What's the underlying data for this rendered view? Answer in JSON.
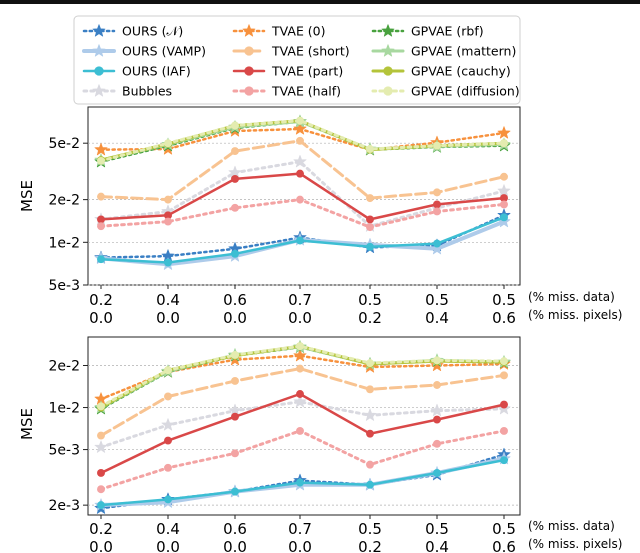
{
  "legend": {
    "entries": [
      {
        "name": "OURS (𝒩)",
        "color": "#3a7fc4",
        "dash": "dot",
        "marker": "star",
        "width": 2.5,
        "alpha": 1
      },
      {
        "name": "OURS (VAMP)",
        "color": "#aecbea",
        "dash": "solid",
        "marker": "star",
        "width": 4,
        "alpha": 1
      },
      {
        "name": "OURS (IAF)",
        "color": "#3cbed3",
        "dash": "solid",
        "marker": "circle",
        "width": 2.5,
        "alpha": 1
      },
      {
        "name": "Bubbles",
        "color": "#d9d9e0",
        "dash": "dot",
        "marker": "star",
        "width": 3,
        "alpha": 1
      },
      {
        "name": "TVAE (0)",
        "color": "#f7913d",
        "dash": "dot",
        "marker": "star",
        "width": 2.5,
        "alpha": 1
      },
      {
        "name": "TVAE (short)",
        "color": "#f8c391",
        "dash": "dash",
        "marker": "circle",
        "width": 3,
        "alpha": 1
      },
      {
        "name": "TVAE (part)",
        "color": "#d94848",
        "dash": "solid",
        "marker": "circle",
        "width": 2.5,
        "alpha": 1
      },
      {
        "name": "TVAE (half)",
        "color": "#f3a3a3",
        "dash": "dot",
        "marker": "circle",
        "width": 3,
        "alpha": 1
      },
      {
        "name": "GPVAE (rbf)",
        "color": "#48a13e",
        "dash": "dot",
        "marker": "star",
        "width": 2.5,
        "alpha": 1
      },
      {
        "name": "GPVAE (mattern)",
        "color": "#a8d8a0",
        "dash": "solid",
        "marker": "star",
        "width": 3,
        "alpha": 1
      },
      {
        "name": "GPVAE (cauchy)",
        "color": "#b4c43a",
        "dash": "solid",
        "marker": "circle",
        "width": 3,
        "alpha": 1
      },
      {
        "name": "GPVAE (diffusion)",
        "color": "#e4ecb0",
        "dash": "dot",
        "marker": "circle",
        "width": 3,
        "alpha": 1
      }
    ]
  },
  "chart_data": [
    {
      "type": "line",
      "ylabel": "MSE",
      "yscale": "log",
      "ylim": [
        0.005,
        0.09
      ],
      "yticks": [
        {
          "v": 0.005,
          "label": "5e-3"
        },
        {
          "v": 0.01,
          "label": "1e-2"
        },
        {
          "v": 0.02,
          "label": "2e-2"
        },
        {
          "v": 0.05,
          "label": "5e-2"
        }
      ],
      "x_row1": [
        "0.2",
        "0.4",
        "0.6",
        "0.7",
        "0.5",
        "0.5",
        "0.5"
      ],
      "x_row2": [
        "0.0",
        "0.0",
        "0.0",
        "0.0",
        "0.2",
        "0.4",
        "0.6"
      ],
      "row1_caption": "(% miss. data)",
      "row2_caption": "(% miss. pixels)",
      "series": [
        {
          "name": "OURS (𝒩)",
          "values": [
            0.0078,
            0.008,
            0.009,
            0.0108,
            0.0092,
            0.0095,
            0.0155
          ]
        },
        {
          "name": "OURS (VAMP)",
          "values": [
            0.0077,
            0.007,
            0.008,
            0.0104,
            0.0096,
            0.009,
            0.014
          ]
        },
        {
          "name": "OURS (IAF)",
          "values": [
            0.0076,
            0.0072,
            0.0083,
            0.0103,
            0.0093,
            0.0098,
            0.015
          ]
        },
        {
          "name": "Bubbles",
          "values": [
            0.0145,
            0.0165,
            0.031,
            0.037,
            0.013,
            0.0175,
            0.023
          ]
        },
        {
          "name": "TVAE (0)",
          "values": [
            0.045,
            0.0455,
            0.061,
            0.063,
            0.045,
            0.0505,
            0.059
          ]
        },
        {
          "name": "TVAE (short)",
          "values": [
            0.021,
            0.02,
            0.044,
            0.052,
            0.0205,
            0.0225,
            0.029
          ]
        },
        {
          "name": "TVAE (part)",
          "values": [
            0.0145,
            0.0155,
            0.028,
            0.0305,
            0.0145,
            0.0185,
            0.0205
          ]
        },
        {
          "name": "TVAE (half)",
          "values": [
            0.013,
            0.014,
            0.0175,
            0.02,
            0.0128,
            0.0165,
            0.0185
          ]
        },
        {
          "name": "GPVAE (rbf)",
          "values": [
            0.037,
            0.048,
            0.064,
            0.071,
            0.045,
            0.047,
            0.048
          ]
        },
        {
          "name": "GPVAE (mattern)",
          "values": [
            0.038,
            0.049,
            0.065,
            0.071,
            0.0455,
            0.0475,
            0.049
          ]
        },
        {
          "name": "GPVAE (cauchy)",
          "values": [
            0.038,
            0.0495,
            0.0665,
            0.072,
            0.045,
            0.048,
            0.05
          ]
        },
        {
          "name": "GPVAE (diffusion)",
          "values": [
            0.0375,
            0.05,
            0.0665,
            0.072,
            0.0455,
            0.048,
            0.05
          ]
        }
      ]
    },
    {
      "type": "line",
      "ylabel": "MSE",
      "yscale": "log",
      "ylim": [
        0.0017,
        0.032
      ],
      "yticks": [
        {
          "v": 0.002,
          "label": "2e-3"
        },
        {
          "v": 0.005,
          "label": "5e-3"
        },
        {
          "v": 0.01,
          "label": "1e-2"
        },
        {
          "v": 0.02,
          "label": "2e-2"
        }
      ],
      "x_row1": [
        "0.2",
        "0.4",
        "0.6",
        "0.7",
        "0.5",
        "0.5",
        "0.5"
      ],
      "x_row2": [
        "0.0",
        "0.0",
        "0.0",
        "0.0",
        "0.2",
        "0.4",
        "0.6"
      ],
      "row1_caption": "(% miss. data)",
      "row2_caption": "(% miss. pixels)",
      "series": [
        {
          "name": "OURS (𝒩)",
          "values": [
            0.0019,
            0.0022,
            0.0025,
            0.003,
            0.0028,
            0.0033,
            0.0046
          ]
        },
        {
          "name": "OURS (VAMP)",
          "values": [
            0.002,
            0.0021,
            0.0025,
            0.0028,
            0.0028,
            0.0034,
            0.0043
          ]
        },
        {
          "name": "OURS (IAF)",
          "values": [
            0.002,
            0.0022,
            0.0025,
            0.0029,
            0.0028,
            0.0034,
            0.0042
          ]
        },
        {
          "name": "Bubbles",
          "values": [
            0.0052,
            0.0075,
            0.0095,
            0.011,
            0.0088,
            0.0095,
            0.0098
          ]
        },
        {
          "name": "TVAE (0)",
          "values": [
            0.0115,
            0.018,
            0.022,
            0.0235,
            0.0195,
            0.02,
            0.0205
          ]
        },
        {
          "name": "TVAE (short)",
          "values": [
            0.0063,
            0.012,
            0.0155,
            0.019,
            0.0135,
            0.0145,
            0.017
          ]
        },
        {
          "name": "TVAE (part)",
          "values": [
            0.0034,
            0.0058,
            0.0086,
            0.0125,
            0.0065,
            0.0082,
            0.0105
          ]
        },
        {
          "name": "TVAE (half)",
          "values": [
            0.0026,
            0.0037,
            0.0047,
            0.0068,
            0.0039,
            0.0055,
            0.0068
          ]
        },
        {
          "name": "GPVAE (rbf)",
          "values": [
            0.0098,
            0.018,
            0.0235,
            0.027,
            0.0205,
            0.0215,
            0.021
          ]
        },
        {
          "name": "GPVAE (mattern)",
          "values": [
            0.01,
            0.0182,
            0.0238,
            0.0272,
            0.0205,
            0.0218,
            0.0212
          ]
        },
        {
          "name": "GPVAE (cauchy)",
          "values": [
            0.01,
            0.0185,
            0.0235,
            0.0275,
            0.0205,
            0.0215,
            0.0212
          ]
        },
        {
          "name": "GPVAE (diffusion)",
          "values": [
            0.0102,
            0.0185,
            0.0238,
            0.0275,
            0.0208,
            0.0218,
            0.0215
          ]
        }
      ]
    }
  ]
}
